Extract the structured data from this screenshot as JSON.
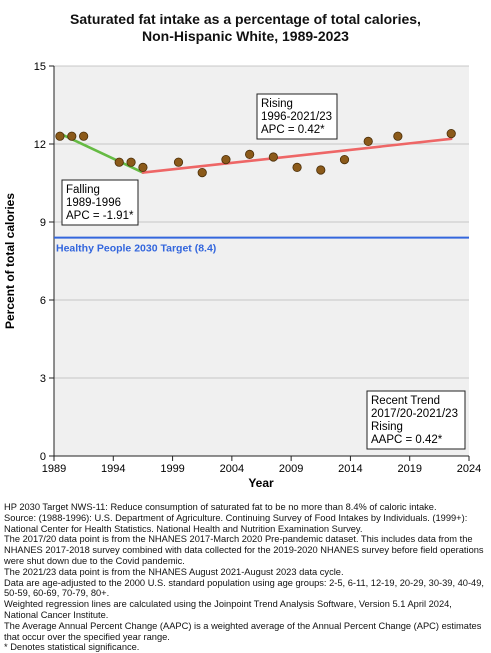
{
  "chart_data": {
    "type": "scatter",
    "title_line1": "Saturated fat intake as a percentage of total calories,",
    "title_line2": "Non-Hispanic White,  1989-2023",
    "xlabel": "Year",
    "ylabel": "Percent of total calories",
    "xlim": [
      1989,
      2024
    ],
    "ylim": [
      0,
      15
    ],
    "x_ticks": [
      1989,
      1994,
      1999,
      2004,
      2009,
      2014,
      2019,
      2024
    ],
    "y_ticks": [
      0,
      3,
      6,
      9,
      12,
      15
    ],
    "grid": true,
    "points": {
      "x": [
        1989.5,
        1990.5,
        1991.5,
        1994.5,
        1995.5,
        1996.5,
        1999.5,
        2001.5,
        2003.5,
        2005.5,
        2007.5,
        2009.5,
        2011.5,
        2013.5,
        2015.5,
        2018.0,
        2022.5
      ],
      "y": [
        12.3,
        12.3,
        12.3,
        11.3,
        11.3,
        11.1,
        11.3,
        10.9,
        11.4,
        11.6,
        11.5,
        11.1,
        11.0,
        11.4,
        12.1,
        12.3,
        12.4
      ],
      "color": "#8b5a1a"
    },
    "trend_segments": [
      {
        "x": [
          1989.5,
          1996.5
        ],
        "y": [
          12.4,
          10.9
        ],
        "color": "#66bb44"
      },
      {
        "x": [
          1996.5,
          2022.5
        ],
        "y": [
          10.9,
          12.2
        ],
        "color": "#ee6666"
      }
    ],
    "target": {
      "value": 8.4,
      "label": "Healthy People 2030 Target (8.4)",
      "color": "#3366dd"
    },
    "annotations": {
      "falling": [
        "Falling",
        "1989-1996",
        "APC = -1.91*"
      ],
      "rising": [
        "Rising",
        "1996-2021/23",
        "APC =  0.42*"
      ],
      "recent": [
        "Recent Trend",
        "2017/20-2021/23",
        "Rising",
        "AAPC =  0.42*"
      ]
    }
  },
  "footnotes": [
    "HP 2030 Target NWS-11: Reduce consumption of saturated fat to be no more than 8.4% of caloric intake.",
    "Source: (1988-1996): U.S. Department of Agriculture. Continuing Survey of Food Intakes by Individuals. (1999+): National Center for Health Statistics. National Health and Nutrition Examination Survey.",
    "The 2017/20 data point is from the NHANES 2017-March 2020 Pre-pandemic dataset. This includes data from the NHANES 2017-2018 survey combined with data collected for the 2019-2020 NHANES survey before field operations were shut down due to the Covid pandemic.",
    "The 2021/23 data point is from the NHANES August 2021-August 2023 data cycle.",
    "Data are age-adjusted to the 2000 U.S. standard population using age groups: 2-5, 6-11, 12-19, 20-29, 30-39, 40-49, 50-59, 60-69, 70-79, 80+.",
    "Weighted regression lines are calculated using the Joinpoint Trend Analysis Software, Version 5.1 April 2024, National Cancer Institute.",
    "The Average Annual Percent Change (AAPC) is a weighted average of the Annual Percent Change (APC) estimates that occur over the specified year range.",
    "* Denotes statistical significance."
  ]
}
